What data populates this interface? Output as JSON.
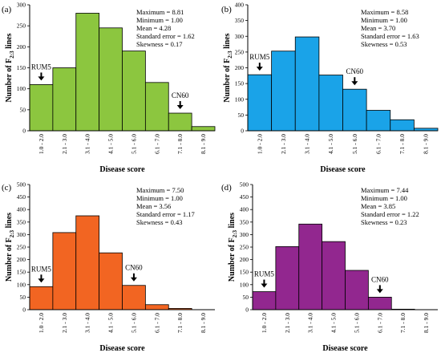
{
  "chart_data": [
    {
      "type": "bar",
      "panel_label": "(a)",
      "color": "#8cc63f",
      "categories": [
        "1.0 - 2.0",
        "2.1 - 3.0",
        "3.1 - 4.0",
        "4.1 - 5.0",
        "5.1 - 6.0",
        "6.1 - 7.0",
        "7.1 - 8.0",
        "8.1 - 9.0"
      ],
      "values": [
        110,
        150,
        280,
        245,
        190,
        115,
        42,
        10
      ],
      "ylim": [
        0,
        300
      ],
      "yticks": [
        "0",
        "50",
        "100",
        "150",
        "200",
        "250",
        "300"
      ],
      "ylabel_main": "Number of F",
      "ylabel_sub": "2:3",
      "ylabel_end": " lines",
      "xlabel": "Disease score",
      "stats": [
        "Maximum = 8.81",
        "Minimum = 1.00",
        "Mean = 4.28",
        "Standard error = 1.62",
        "Skewness = 0.17"
      ],
      "annotations": [
        {
          "label": "RUM5",
          "category_index": 0,
          "value": 110
        },
        {
          "label": "CN60",
          "category_index": 6,
          "value": 42
        }
      ]
    },
    {
      "type": "bar",
      "panel_label": "(b)",
      "color": "#1aa3e8",
      "categories": [
        "1.0 - 2.0",
        "2.1 - 3.0",
        "3.1 - 4.0",
        "4.1 - 5.0",
        "5.1 - 6.0",
        "6.1 - 7.0",
        "7.1 - 8.0",
        "8.1 - 9.0"
      ],
      "values": [
        178,
        253,
        298,
        177,
        132,
        65,
        35,
        8
      ],
      "ylim": [
        0,
        400
      ],
      "yticks": [
        "0",
        "50",
        "100",
        "150",
        "200",
        "250",
        "300",
        "350",
        "400"
      ],
      "ylabel_main": "Number of F",
      "ylabel_sub": "2:3",
      "ylabel_end": " lines",
      "xlabel": "Disease score",
      "stats": [
        "Maximum = 8.58",
        "Minimum = 1.00",
        "Mean = 3.70",
        "Standard error = 1.63",
        "Skewness = 0.53"
      ],
      "annotations": [
        {
          "label": "RUM5",
          "category_index": 0,
          "value": 178
        },
        {
          "label": "CN60",
          "category_index": 4,
          "value": 132
        }
      ]
    },
    {
      "type": "bar",
      "panel_label": "(c)",
      "color": "#f26522",
      "categories": [
        "1.0 - 2.0",
        "2.1 - 3.0",
        "3.1 - 4.0",
        "4.1 - 5.0",
        "5.1 - 6.0",
        "6.1 - 7.0",
        "7.1 - 8.0",
        "8.1 - 9.0"
      ],
      "values": [
        92,
        308,
        375,
        227,
        97,
        20,
        5,
        0
      ],
      "ylim": [
        0,
        500
      ],
      "yticks": [
        "0",
        "50",
        "100",
        "150",
        "200",
        "250",
        "300",
        "350",
        "400",
        "450",
        "500"
      ],
      "ylabel_main": "Number of F",
      "ylabel_sub": "2:3",
      "ylabel_end": " lines",
      "xlabel": "Disease score",
      "stats": [
        "Maximum = 7.50",
        "Minimum = 1.00",
        "Mean = 3.56",
        "Standard error = 1.17",
        "Skewness = 0.43"
      ],
      "annotations": [
        {
          "label": "RUM5",
          "category_index": 0,
          "value": 92
        },
        {
          "label": "CN60",
          "category_index": 4,
          "value": 97
        }
      ]
    },
    {
      "type": "bar",
      "panel_label": "(d)",
      "color": "#92278f",
      "categories": [
        "1.0 - 2.0",
        "2.1 - 3.0",
        "3.1 - 4.0",
        "4.1 - 5.0",
        "5.1 - 6.0",
        "6.1 - 7.0",
        "7.1 - 8.0",
        "8.1 - 9.0"
      ],
      "values": [
        72,
        252,
        342,
        272,
        157,
        50,
        2,
        0
      ],
      "ylim": [
        0,
        500
      ],
      "yticks": [
        "0",
        "50",
        "100",
        "150",
        "200",
        "250",
        "300",
        "350",
        "400",
        "450",
        "500"
      ],
      "ylabel_main": "Number of F",
      "ylabel_sub": "2:3",
      "ylabel_end": " lines",
      "xlabel": "Disease score",
      "stats": [
        "Maximum = 7.44",
        "Minimum = 1.00",
        "Mean = 3.85",
        "Standard error = 1.22",
        "Skewness = 0.23"
      ],
      "annotations": [
        {
          "label": "RUM5",
          "category_index": 0,
          "value": 72
        },
        {
          "label": "CN60",
          "category_index": 5,
          "value": 50
        }
      ]
    }
  ]
}
